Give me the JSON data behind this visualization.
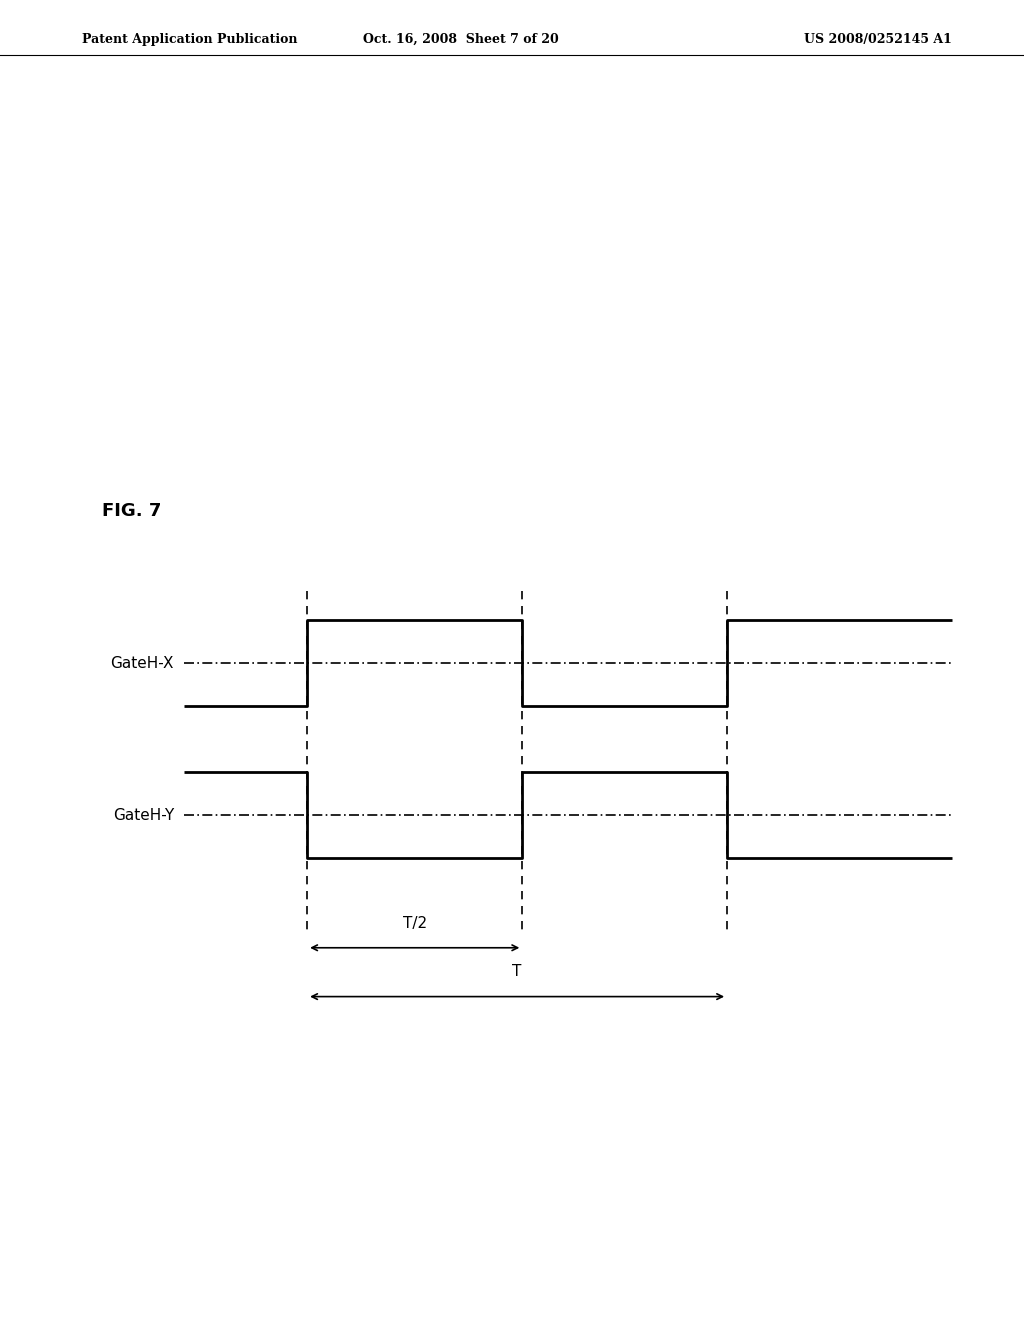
{
  "fig_label": "FIG. 7",
  "header_left": "Patent Application Publication",
  "header_center": "Oct. 16, 2008  Sheet 7 of 20",
  "header_right": "US 2008/0252145 A1",
  "background_color": "#ffffff",
  "signal_GateHX_label": "GateH-X",
  "signal_GateHY_label": "GateH-Y",
  "annotation_T2": "T/2",
  "annotation_T": "T",
  "line_color": "#000000",
  "dash_dot_color": "#000000",
  "dashed_color": "#000000"
}
